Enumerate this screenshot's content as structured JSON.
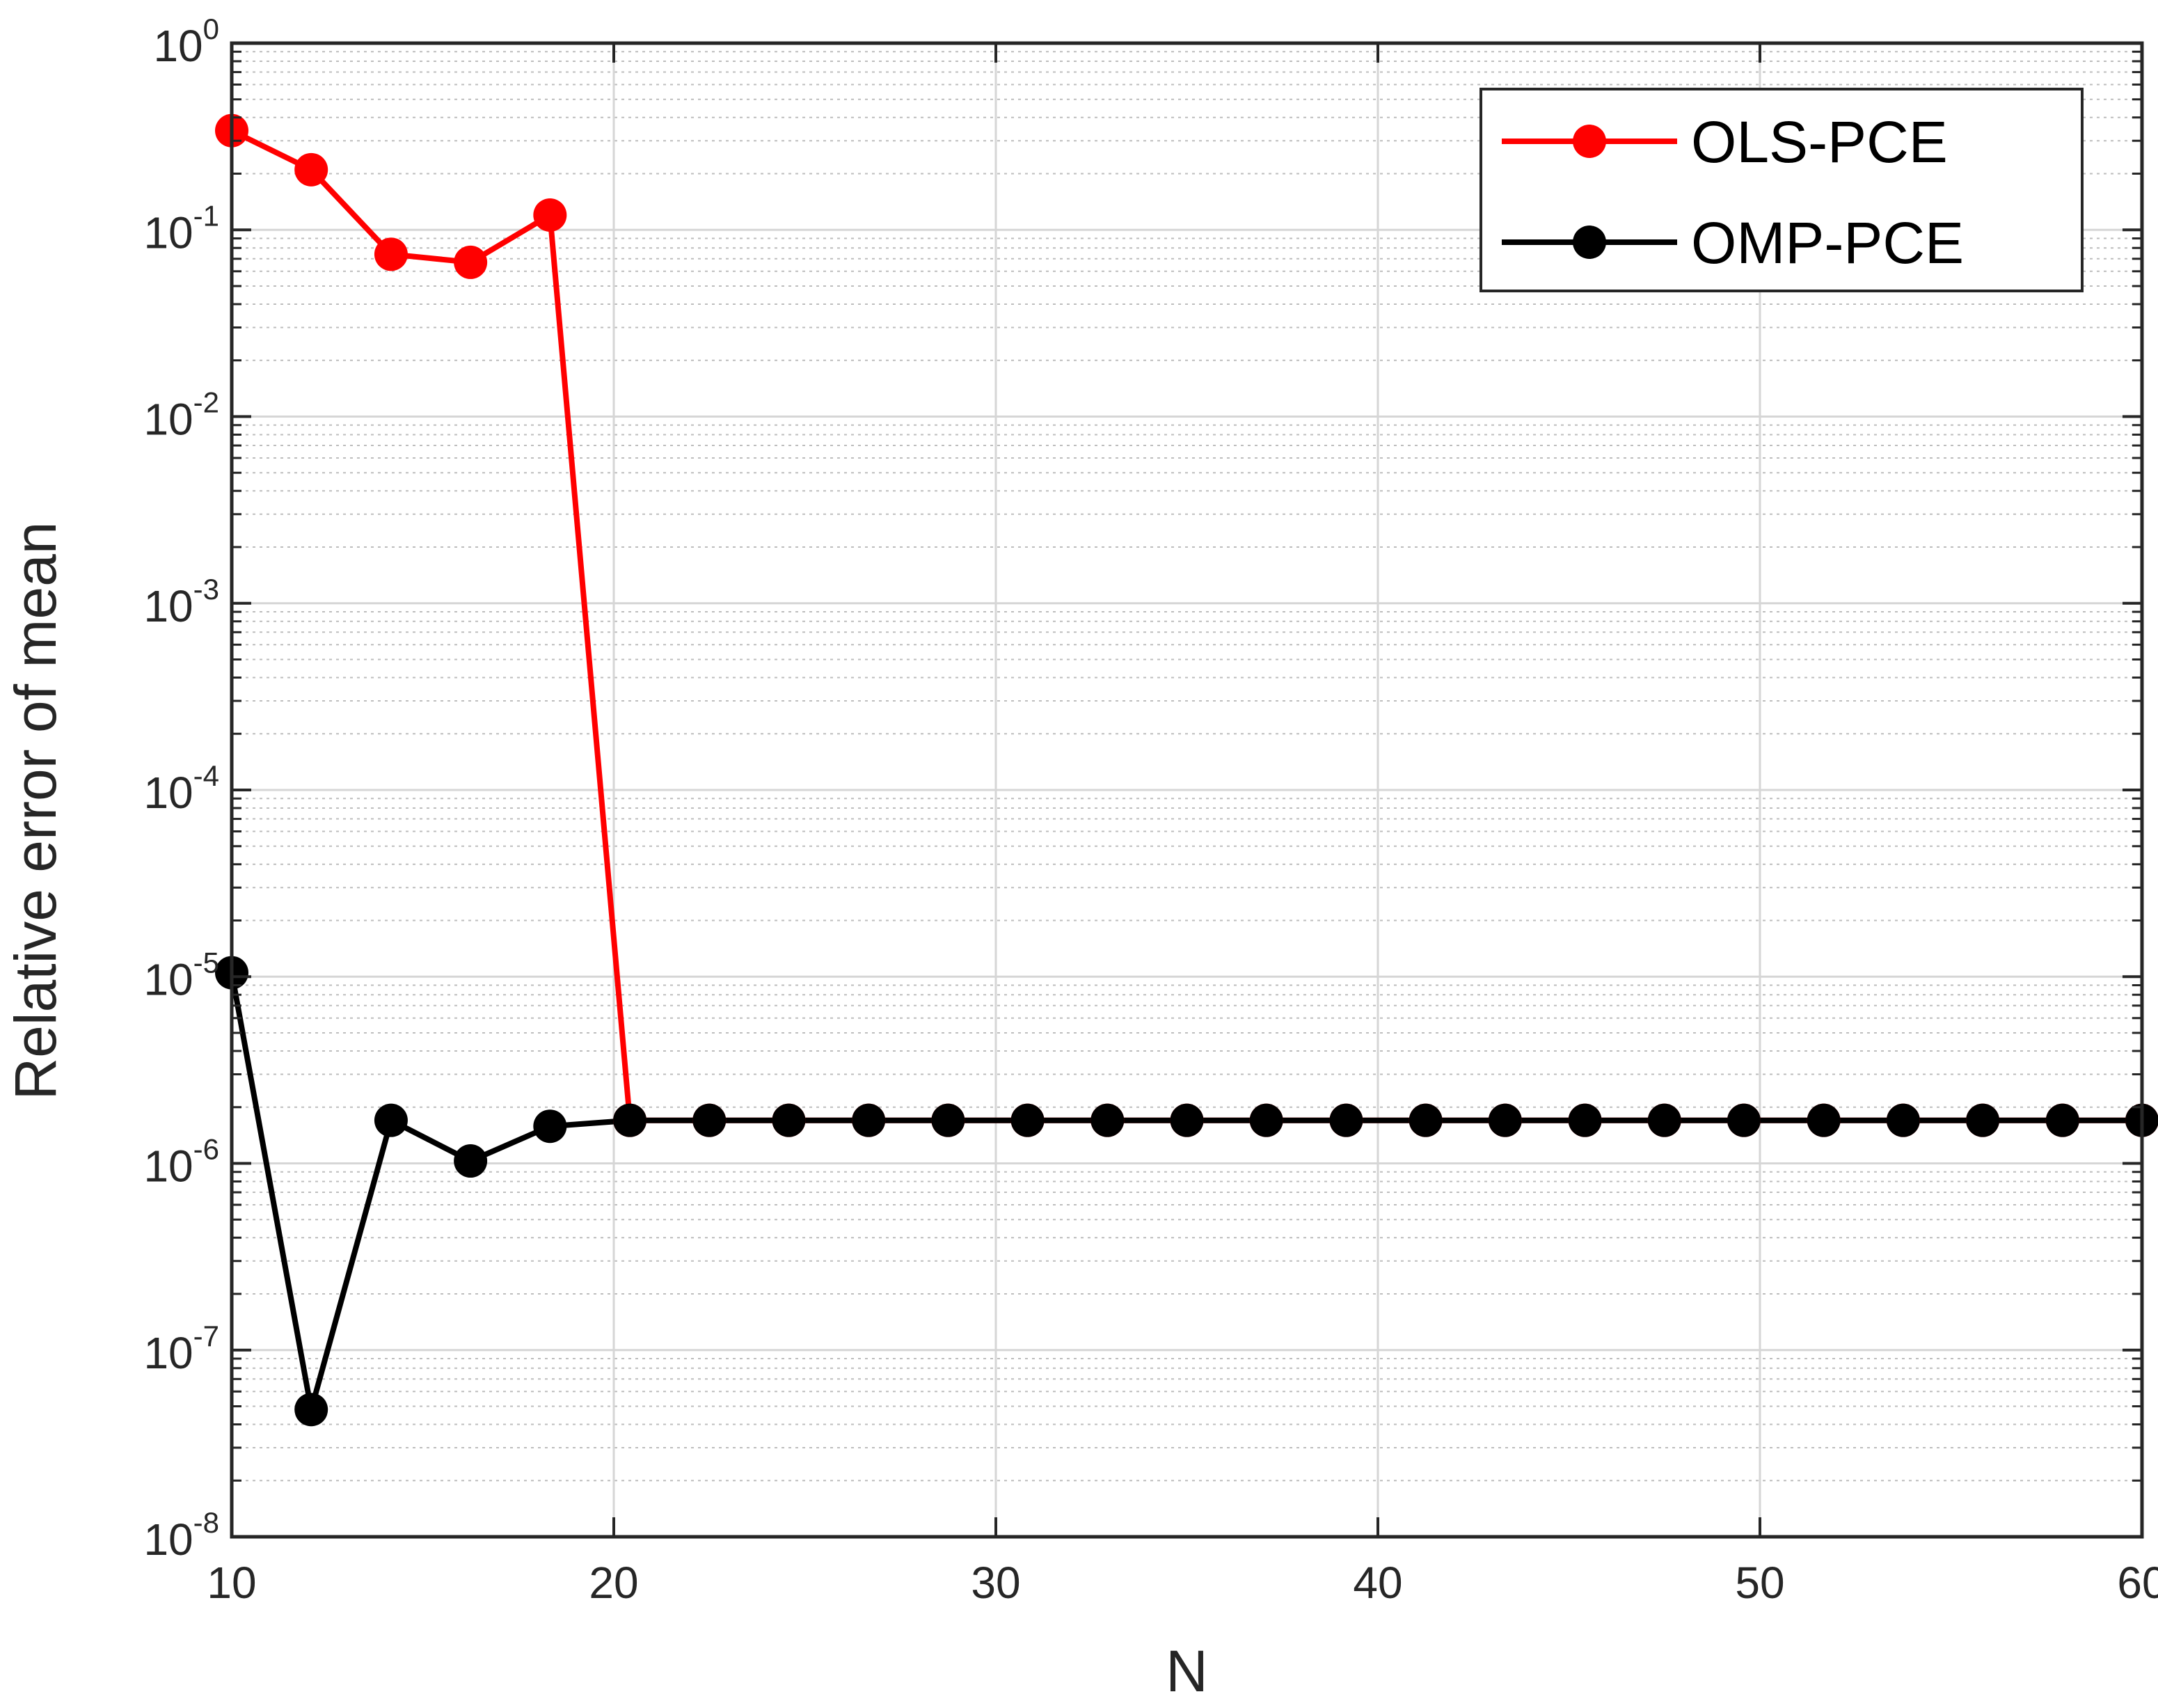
{
  "chart_data": {
    "type": "line",
    "xlabel": "N",
    "ylabel": "Relative error of mean",
    "xlim": [
      10,
      60
    ],
    "ylim": [
      1e-08,
      1
    ],
    "yscale": "log",
    "grid": true,
    "minor_grid": true,
    "legend_position": "top-right",
    "x_ticks": [
      10,
      20,
      30,
      40,
      50,
      60
    ],
    "y_ticks": [
      {
        "base": "10",
        "exp": "-8",
        "value": 1e-08
      },
      {
        "base": "10",
        "exp": "-7",
        "value": 1e-07
      },
      {
        "base": "10",
        "exp": "-6",
        "value": 1e-06
      },
      {
        "base": "10",
        "exp": "-5",
        "value": 1e-05
      },
      {
        "base": "10",
        "exp": "-4",
        "value": 0.0001
      },
      {
        "base": "10",
        "exp": "-3",
        "value": 0.001
      },
      {
        "base": "10",
        "exp": "-2",
        "value": 0.01
      },
      {
        "base": "10",
        "exp": "-1",
        "value": 0.1
      },
      {
        "base": "10",
        "exp": "0",
        "value": 1
      }
    ],
    "series": [
      {
        "name": "OLS-PCE",
        "color": "#ff0000",
        "marker": "filled-circle",
        "x": [
          10,
          12.08,
          14.17,
          16.25,
          18.33,
          20.42,
          22.5,
          24.58,
          26.67,
          28.75,
          30.83,
          32.92,
          35,
          37.08,
          39.17,
          41.25,
          43.33,
          45.42,
          47.5,
          49.58,
          51.67,
          53.75,
          55.83,
          57.92,
          60
        ],
        "y": [
          0.34,
          0.21,
          0.074,
          0.067,
          0.12,
          1.7e-06,
          1.7e-06,
          1.7e-06,
          1.7e-06,
          1.7e-06,
          1.7e-06,
          1.7e-06,
          1.7e-06,
          1.7e-06,
          1.7e-06,
          1.7e-06,
          1.7e-06,
          1.7e-06,
          1.7e-06,
          1.7e-06,
          1.7e-06,
          1.7e-06,
          1.7e-06,
          1.7e-06,
          1.7e-06
        ]
      },
      {
        "name": "OMP-PCE",
        "color": "#000000",
        "marker": "filled-circle",
        "x": [
          10,
          12.08,
          14.17,
          16.25,
          18.33,
          20.42,
          22.5,
          24.58,
          26.67,
          28.75,
          30.83,
          32.92,
          35,
          37.08,
          39.17,
          41.25,
          43.33,
          45.42,
          47.5,
          49.58,
          51.67,
          53.75,
          55.83,
          57.92,
          60
        ],
        "y": [
          1.05e-05,
          4.8e-08,
          1.7e-06,
          1.03e-06,
          1.58e-06,
          1.7e-06,
          1.7e-06,
          1.7e-06,
          1.7e-06,
          1.7e-06,
          1.7e-06,
          1.7e-06,
          1.7e-06,
          1.7e-06,
          1.7e-06,
          1.7e-06,
          1.7e-06,
          1.7e-06,
          1.7e-06,
          1.7e-06,
          1.7e-06,
          1.7e-06,
          1.7e-06,
          1.7e-06,
          1.7e-06
        ]
      }
    ]
  }
}
